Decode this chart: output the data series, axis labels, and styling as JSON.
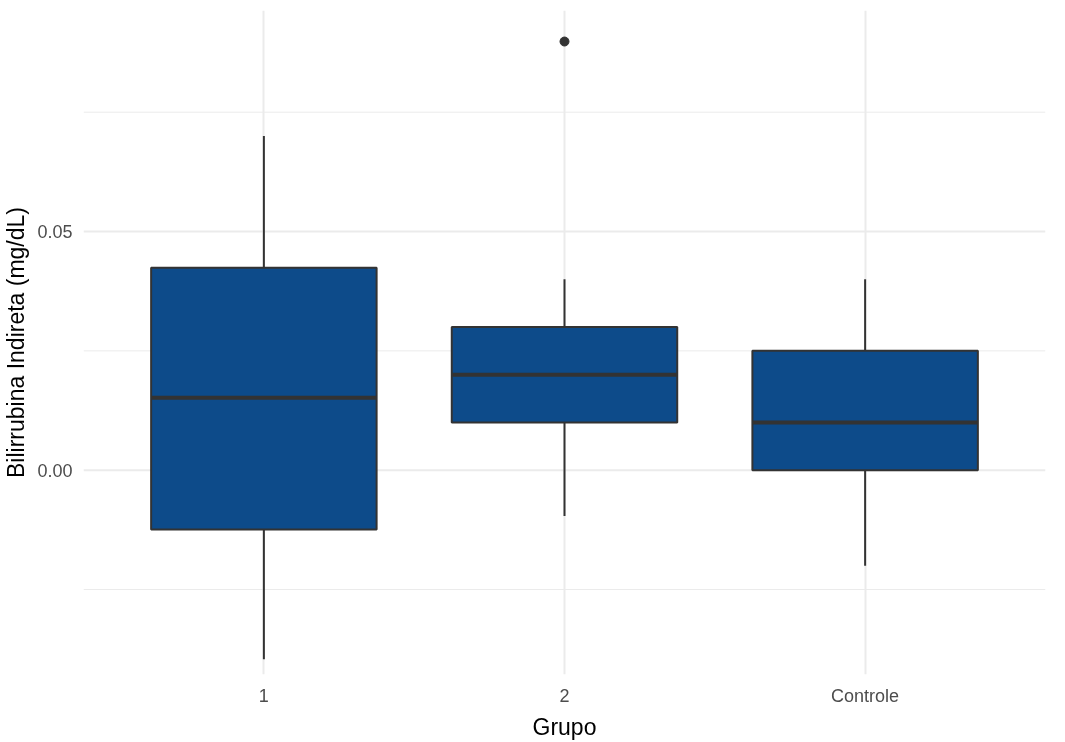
{
  "chart_data": {
    "type": "box",
    "xlabel": "Grupo",
    "ylabel": "Bilirrubina Indireta (mg/dL)",
    "categories": [
      "1",
      "2",
      "Controle"
    ],
    "boxes": [
      {
        "low": -0.0396,
        "q1": -0.0124,
        "median": 0.0152,
        "q3": 0.0424,
        "high": 0.07
      },
      {
        "low": -0.0096,
        "q1": 0.01,
        "median": 0.02,
        "q3": 0.03,
        "high": 0.04,
        "outliers": [
          0.0898
        ]
      },
      {
        "low": -0.02,
        "q1": 0.0,
        "median": 0.01,
        "q3": 0.025,
        "high": 0.04
      }
    ],
    "color": "#0d4b8a",
    "ylim": [
      -0.0428,
      0.0963
    ],
    "yticks": [
      {
        "value": -0.025,
        "label": null
      },
      {
        "value": 0.0,
        "label": "0.00"
      },
      {
        "value": 0.025,
        "label": null
      },
      {
        "value": 0.05,
        "label": "0.05"
      },
      {
        "value": 0.075,
        "label": null
      }
    ],
    "grid": true
  }
}
